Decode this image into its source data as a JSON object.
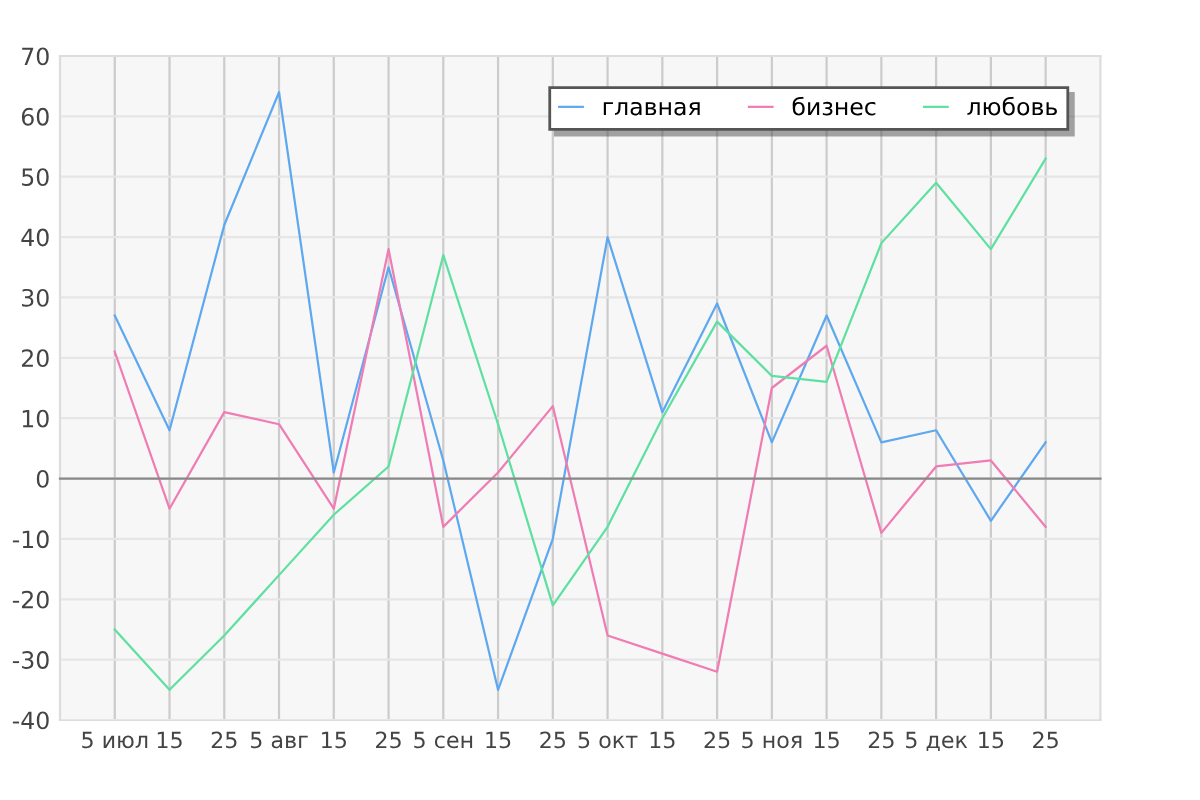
{
  "chart_data": {
    "type": "line",
    "categories": [
      "5 июл",
      "15",
      "25",
      "5 авг",
      "15",
      "25",
      "5 сен",
      "15",
      "25",
      "5 окт",
      "15",
      "25",
      "5 ноя",
      "15",
      "25",
      "5 дек",
      "15",
      "25"
    ],
    "series": [
      {
        "name": "главная",
        "color": "#5ea8f0",
        "values": [
          27,
          8,
          42,
          64,
          1,
          35,
          3,
          -35,
          -10,
          40,
          11,
          29,
          6,
          27,
          6,
          8,
          -7,
          6
        ]
      },
      {
        "name": "бизнес",
        "color": "#f07cb4",
        "values": [
          21,
          -5,
          11,
          9,
          -5,
          38,
          -8,
          1,
          12,
          -26,
          -29,
          -32,
          15,
          22,
          -9,
          2,
          3,
          -8
        ]
      },
      {
        "name": "любовь",
        "color": "#5ee0a0",
        "values": [
          -25,
          -35,
          -26,
          -16,
          -6,
          2,
          37,
          9,
          -21,
          -8,
          10,
          26,
          17,
          16,
          39,
          49,
          38,
          53
        ]
      }
    ],
    "ylim": [
      -40,
      70
    ],
    "yticks": [
      -40,
      -30,
      -20,
      -10,
      0,
      10,
      20,
      30,
      40,
      50,
      60,
      70
    ],
    "grid": true,
    "legend": "top right",
    "marker": "none",
    "line_style": "solid"
  }
}
